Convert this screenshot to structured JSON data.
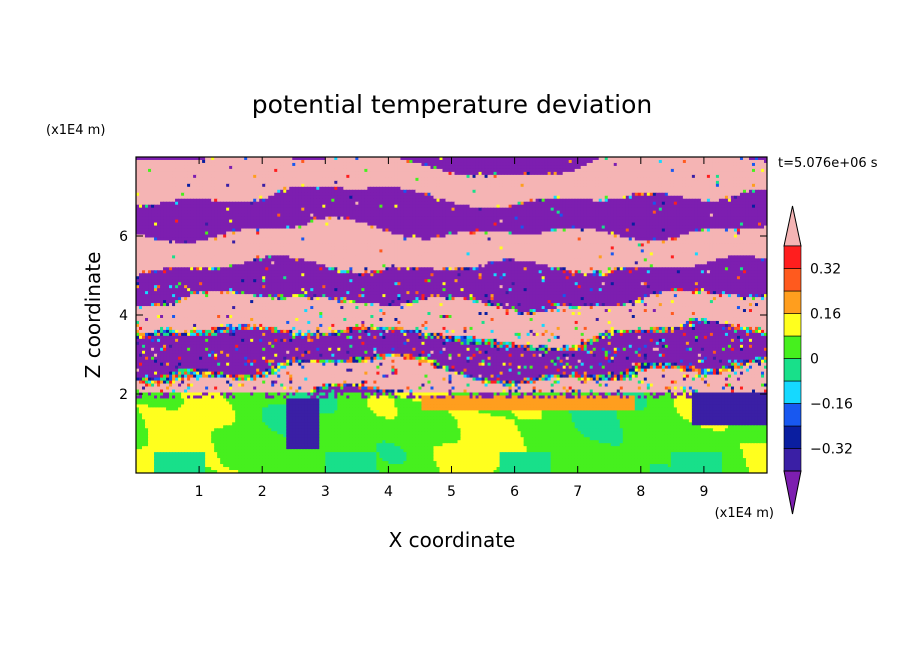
{
  "chart_data": {
    "type": "heatmap",
    "title": "potential temperature deviation",
    "xlabel": "X coordinate",
    "ylabel": "Z coordinate",
    "x_unit_label": "(x1E4 m)",
    "y_unit_label": "(x1E4 m)",
    "time_label": "t=5.076e+06 s",
    "xlim": [
      0,
      10
    ],
    "ylim": [
      0,
      8
    ],
    "x_ticks": [
      1,
      2,
      3,
      4,
      5,
      6,
      7,
      8,
      9
    ],
    "y_ticks": [
      2,
      4,
      6
    ],
    "x_tick_labels": [
      "1",
      "2",
      "3",
      "4",
      "5",
      "6",
      "7",
      "8",
      "9"
    ],
    "y_tick_labels": [
      "2",
      "4",
      "6"
    ],
    "colorbar": {
      "levels": [
        -0.4,
        -0.32,
        -0.24,
        -0.16,
        -0.08,
        0,
        0.08,
        0.16,
        0.24,
        0.32,
        0.4
      ],
      "tick_values": [
        0.32,
        0.16,
        0,
        -0.16,
        -0.32
      ],
      "tick_labels": [
        "0.32",
        "0.16",
        "0",
        "−0.16",
        "−0.32"
      ],
      "colors": [
        "#3a1fa5",
        "#0a1ea0",
        "#1858f0",
        "#15d9ff",
        "#18e08a",
        "#46f01e",
        "#ffff1e",
        "#ff9e1e",
        "#ff5a1e",
        "#ff1e1e"
      ],
      "under_color": "#7d1eb0",
      "over_color": "#f5b4b4",
      "extend": "both"
    },
    "field_description_bands": [
      {
        "z_range": [
          6.9,
          7.9
        ],
        "dominant": [
          "over",
          "under"
        ]
      },
      {
        "z_range": [
          3.6,
          6.9
        ],
        "dominant": [
          "over",
          "under"
        ]
      },
      {
        "z_range": [
          2.2,
          3.6
        ],
        "dominant": [
          "over",
          "under",
          "mixed"
        ]
      },
      {
        "z_range": [
          0,
          2.0
        ],
        "dominant": [
          "0",
          "0.08",
          "0.16"
        ]
      }
    ]
  }
}
